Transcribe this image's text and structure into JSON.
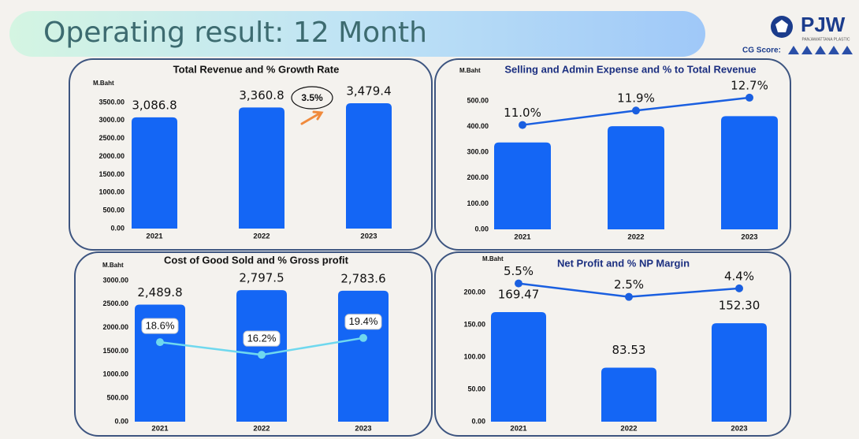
{
  "title": "Operating result: 12 Month",
  "logo": {
    "name": "PJW",
    "subtitle": "PANJAWATTANA PLASTIC",
    "cg_score": "CG Score:"
  },
  "chart_data": [
    {
      "type": "bar",
      "title": "Total Revenue and % Growth Rate",
      "y_label": "M.Baht",
      "annotation": "3.5%",
      "categories": [
        "2021",
        "2022",
        "2023"
      ],
      "series": [
        {
          "type": "bar",
          "color": "#1466f5",
          "values": [
            3086.8,
            3360.8,
            3479.4
          ],
          "value_labels": [
            "3,086.8",
            "3,360.8",
            "3,479.4"
          ]
        }
      ],
      "ylim": [
        0,
        3500
      ],
      "yticks": [
        {
          "value": 0,
          "label": "0.00"
        },
        {
          "value": 500,
          "label": "500.00"
        },
        {
          "value": 1000,
          "label": "1000.00"
        },
        {
          "value": 1500,
          "label": "1500.00"
        },
        {
          "value": 2000,
          "label": "2000.00"
        },
        {
          "value": 2500,
          "label": "2500.00"
        },
        {
          "value": 3000,
          "label": "3000.00"
        },
        {
          "value": 3500,
          "label": "3500.00"
        }
      ]
    },
    {
      "type": "bar_line",
      "title": "Selling and Admin Expense and % to Total Revenue",
      "y_label": "M.Baht",
      "categories": [
        "2021",
        "2022",
        "2023"
      ],
      "series": [
        {
          "type": "bar",
          "color": "#1466f5",
          "values": [
            338.2,
            401.4,
            440.7
          ]
        },
        {
          "type": "line",
          "axis": "y2",
          "color": "#1a5fe0",
          "values": [
            11.0,
            11.9,
            12.7
          ],
          "value_labels": [
            "11.0%",
            "11.9%",
            "12.7%"
          ]
        }
      ],
      "ylim": [
        0,
        500
      ],
      "yticks": [
        {
          "value": 0,
          "label": "0.00"
        },
        {
          "value": 100,
          "label": "100.00"
        },
        {
          "value": 200,
          "label": "200.00"
        },
        {
          "value": 300,
          "label": "300.00"
        },
        {
          "value": 400,
          "label": "400.00"
        },
        {
          "value": 500,
          "label": "500.00"
        }
      ],
      "y2lim": [
        4.5,
        12.5
      ]
    },
    {
      "type": "bar_line",
      "title": "Cost of Good Sold and % Gross profit",
      "y_label": "M.Baht",
      "categories": [
        "2021",
        "2022",
        "2023"
      ],
      "series": [
        {
          "type": "bar",
          "color": "#1466f5",
          "values": [
            2489.8,
            2797.5,
            2783.6
          ],
          "value_labels": [
            "2,489.8",
            "2,797.5",
            "2,783.6"
          ]
        },
        {
          "type": "line",
          "axis": "y2",
          "color": "#6fd8ee",
          "values": [
            18.6,
            16.2,
            19.4
          ],
          "value_labels": [
            "18.6%",
            "16.2%",
            "19.4%"
          ]
        }
      ],
      "ylim": [
        0,
        3000
      ],
      "yticks": [
        {
          "value": 0,
          "label": "0.00"
        },
        {
          "value": 500,
          "label": "500.00"
        },
        {
          "value": 1000,
          "label": "1000.00"
        },
        {
          "value": 1500,
          "label": "1500.00"
        },
        {
          "value": 2000,
          "label": "2000.00"
        },
        {
          "value": 2500,
          "label": "2500.00"
        },
        {
          "value": 3000,
          "label": "3000.00"
        }
      ],
      "y2lim": [
        3.5,
        30.3
      ]
    },
    {
      "type": "bar_line",
      "title": "Net Profit and % NP Margin",
      "y_label": "M.Baht",
      "categories": [
        "2021",
        "2022",
        "2023"
      ],
      "series": [
        {
          "type": "bar",
          "color": "#1466f5",
          "values": [
            169.47,
            83.53,
            152.3
          ],
          "value_labels": [
            "169.47",
            "83.53",
            "152.30"
          ]
        },
        {
          "type": "line",
          "axis": "y2",
          "color": "#1a5fe0",
          "values": [
            5.5,
            2.5,
            4.4
          ],
          "value_labels": [
            "5.5%",
            "2.5%",
            "4.4%"
          ]
        }
      ],
      "ylim": [
        0,
        200
      ],
      "yticks": [
        {
          "value": 0,
          "label": "0.00"
        },
        {
          "value": 50,
          "label": "50.00"
        },
        {
          "value": 100,
          "label": "100.00"
        },
        {
          "value": 150,
          "label": "150.00"
        },
        {
          "value": 200,
          "label": "200.00"
        }
      ],
      "y2lim": [
        -25.4,
        3.5
      ]
    }
  ]
}
